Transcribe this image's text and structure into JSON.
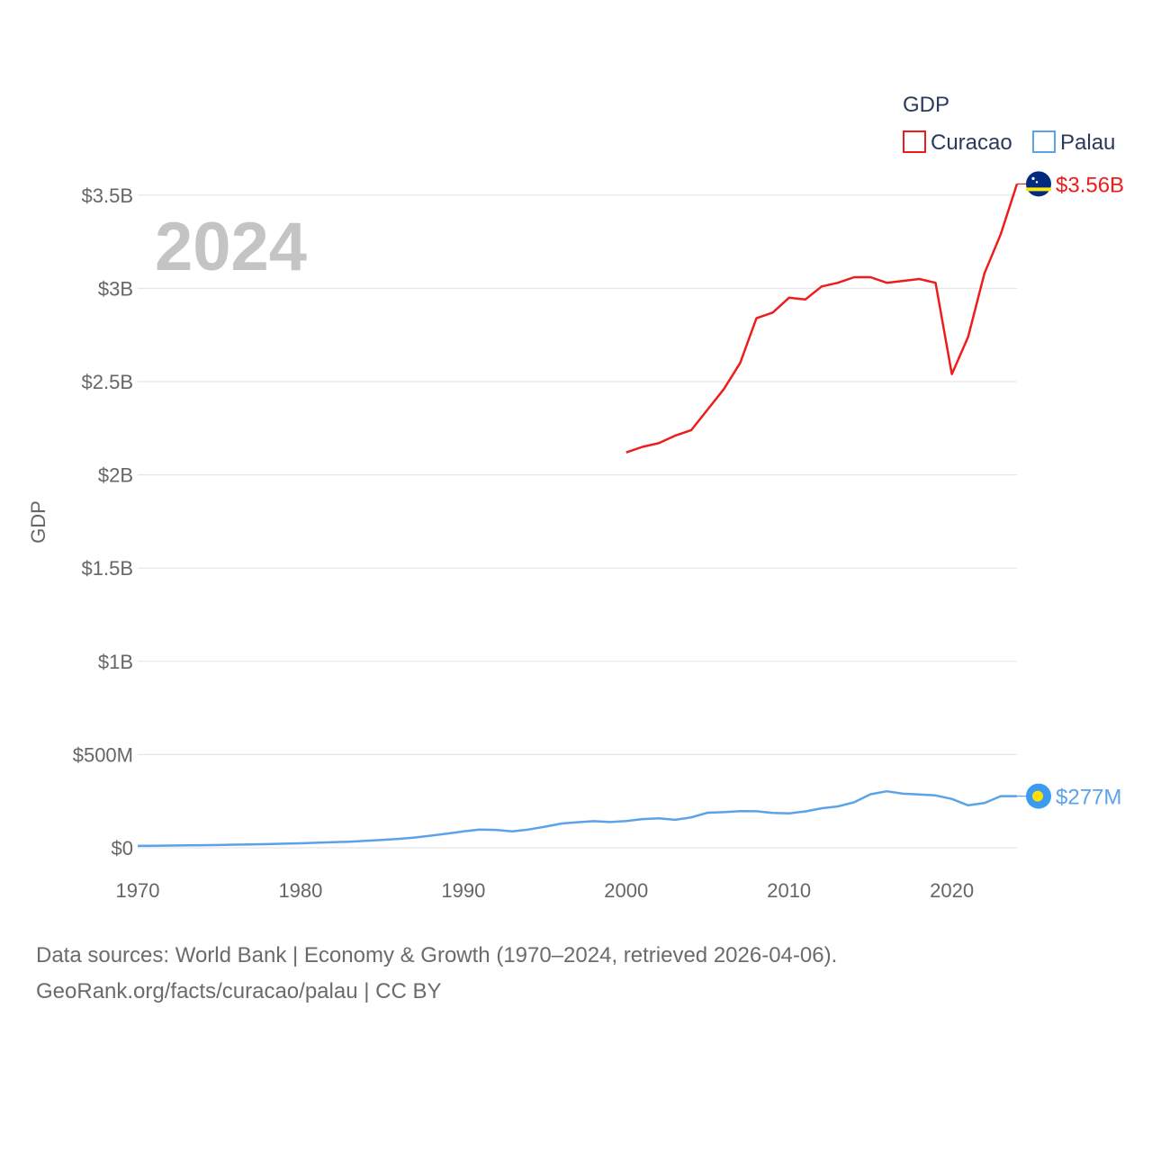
{
  "chart_data": {
    "type": "line",
    "year_label": "2024",
    "ylabel": "GDP",
    "xlim": [
      1970,
      2024
    ],
    "ylim": [
      0,
      3.75
    ],
    "x_ticks": [
      "1970",
      "1980",
      "1990",
      "2000",
      "2010",
      "2020"
    ],
    "y_ticks": [
      {
        "value": 0,
        "label": "$0"
      },
      {
        "value": 0.5,
        "label": "$500M"
      },
      {
        "value": 1,
        "label": "$1B"
      },
      {
        "value": 1.5,
        "label": "$1.5B"
      },
      {
        "value": 2,
        "label": "$2B"
      },
      {
        "value": 2.5,
        "label": "$2.5B"
      },
      {
        "value": 3,
        "label": "$3B"
      },
      {
        "value": 3.5,
        "label": "$3.5B"
      }
    ],
    "legend": {
      "title": "GDP",
      "position": "top-right"
    },
    "units": "billions of US$",
    "series": [
      {
        "name": "Curacao",
        "color": "#ee1c1c",
        "end_label": "$3.56B",
        "flag": "curacao-flag",
        "x": [
          2000,
          2001,
          2002,
          2003,
          2004,
          2005,
          2006,
          2007,
          2008,
          2009,
          2010,
          2011,
          2012,
          2013,
          2014,
          2015,
          2016,
          2017,
          2018,
          2019,
          2020,
          2021,
          2022,
          2023,
          2024
        ],
        "values": [
          2.12,
          2.15,
          2.17,
          2.21,
          2.24,
          2.35,
          2.46,
          2.6,
          2.84,
          2.87,
          2.95,
          2.94,
          3.01,
          3.03,
          3.06,
          3.06,
          3.03,
          3.04,
          3.05,
          3.03,
          2.54,
          2.74,
          3.08,
          3.29,
          3.56
        ]
      },
      {
        "name": "Palau",
        "color": "#5ba3e8",
        "end_label": "$277M",
        "flag": "palau-flag",
        "x": [
          1970,
          1971,
          1972,
          1973,
          1974,
          1975,
          1976,
          1977,
          1978,
          1979,
          1980,
          1981,
          1982,
          1983,
          1984,
          1985,
          1986,
          1987,
          1988,
          1989,
          1990,
          1991,
          1992,
          1993,
          1994,
          1995,
          1996,
          1997,
          1998,
          1999,
          2000,
          2001,
          2002,
          2003,
          2004,
          2005,
          2006,
          2007,
          2008,
          2009,
          2010,
          2011,
          2012,
          2013,
          2014,
          2015,
          2016,
          2017,
          2018,
          2019,
          2020,
          2021,
          2022,
          2023,
          2024
        ],
        "values": [
          0.01,
          0.011,
          0.012,
          0.013,
          0.014,
          0.015,
          0.017,
          0.018,
          0.02,
          0.022,
          0.024,
          0.027,
          0.03,
          0.033,
          0.037,
          0.042,
          0.048,
          0.055,
          0.065,
          0.076,
          0.088,
          0.098,
          0.096,
          0.088,
          0.098,
          0.113,
          0.13,
          0.137,
          0.143,
          0.138,
          0.144,
          0.154,
          0.158,
          0.15,
          0.163,
          0.188,
          0.191,
          0.197,
          0.196,
          0.187,
          0.185,
          0.195,
          0.212,
          0.222,
          0.244,
          0.287,
          0.303,
          0.29,
          0.286,
          0.281,
          0.262,
          0.228,
          0.24,
          0.277,
          0.277
        ]
      }
    ]
  },
  "footer": {
    "line1": "Data sources: World Bank | Economy & Growth (1970–2024, retrieved 2026-04-06).",
    "line2": "GeoRank.org/facts/curacao/palau | CC BY"
  }
}
